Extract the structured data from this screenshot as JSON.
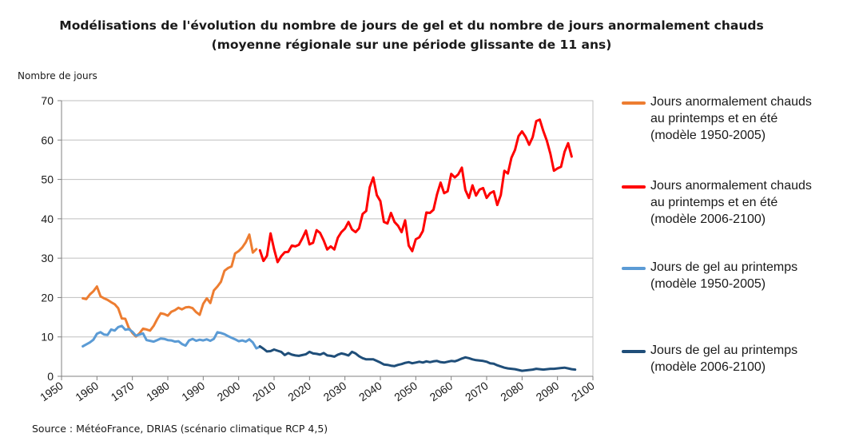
{
  "title_line1": "Modélisations de l'évolution du nombre de jours de gel et du nombre de jours anormalement chauds",
  "title_line2": "(moyenne régionale sur une période glissante de 11 ans)",
  "ylabel": "Nombre de jours",
  "source": "Source : MétéoFrance, DRIAS (scénario climatique RCP 4,5)",
  "chart_data": {
    "type": "line",
    "title": "Modélisations de l'évolution du nombre de jours de gel et du nombre de jours anormalement chauds (moyenne régionale sur une période glissante de 11 ans)",
    "xlabel": "",
    "ylabel": "Nombre de jours",
    "xlim": [
      1950,
      2100
    ],
    "ylim": [
      0,
      70
    ],
    "xticks": [
      1950,
      1960,
      1970,
      1980,
      1990,
      2000,
      2010,
      2020,
      2030,
      2040,
      2050,
      2060,
      2070,
      2080,
      2090,
      2100
    ],
    "yticks": [
      0,
      10,
      20,
      30,
      40,
      50,
      60,
      70
    ],
    "grid": "horizontal",
    "legend": "right",
    "series": [
      {
        "name": "Jours anormalement chauds au printemps et en été (modèle 1950-2005)",
        "color": "#ED7D31",
        "width": 3,
        "points": [
          [
            1956,
            19.8
          ],
          [
            1957,
            19.6
          ],
          [
            1958,
            20.8
          ],
          [
            1959,
            21.6
          ],
          [
            1960,
            22.8
          ],
          [
            1961,
            20.3
          ],
          [
            1962,
            19.8
          ],
          [
            1963,
            19.4
          ],
          [
            1964,
            18.8
          ],
          [
            1965,
            18.3
          ],
          [
            1966,
            17.3
          ],
          [
            1967,
            14.7
          ],
          [
            1968,
            14.6
          ],
          [
            1969,
            12.3
          ],
          [
            1970,
            11.0
          ],
          [
            1971,
            10.1
          ],
          [
            1972,
            10.9
          ],
          [
            1973,
            12.1
          ],
          [
            1974,
            11.9
          ],
          [
            1975,
            11.6
          ],
          [
            1976,
            12.8
          ],
          [
            1977,
            14.5
          ],
          [
            1978,
            16.0
          ],
          [
            1979,
            15.8
          ],
          [
            1980,
            15.4
          ],
          [
            1981,
            16.4
          ],
          [
            1982,
            16.8
          ],
          [
            1983,
            17.4
          ],
          [
            1984,
            17.0
          ],
          [
            1985,
            17.5
          ],
          [
            1986,
            17.6
          ],
          [
            1987,
            17.3
          ],
          [
            1988,
            16.3
          ],
          [
            1989,
            15.6
          ],
          [
            1990,
            18.4
          ],
          [
            1991,
            19.8
          ],
          [
            1992,
            18.6
          ],
          [
            1993,
            21.8
          ],
          [
            1994,
            22.8
          ],
          [
            1995,
            24.0
          ],
          [
            1996,
            26.8
          ],
          [
            1997,
            27.5
          ],
          [
            1998,
            27.9
          ],
          [
            1999,
            31.2
          ],
          [
            2000,
            31.8
          ],
          [
            2001,
            32.7
          ],
          [
            2002,
            34.0
          ],
          [
            2003,
            36.0
          ],
          [
            2004,
            31.4
          ],
          [
            2005,
            32.3
          ]
        ]
      },
      {
        "name": "Jours anormalement chauds au printemps et en été (modèle 2006-2100)",
        "color": "#FF0000",
        "width": 3,
        "points": [
          [
            2006,
            32.0
          ],
          [
            2007,
            29.3
          ],
          [
            2008,
            30.6
          ],
          [
            2009,
            36.3
          ],
          [
            2010,
            32.3
          ],
          [
            2011,
            29.0
          ],
          [
            2012,
            30.5
          ],
          [
            2013,
            31.5
          ],
          [
            2014,
            31.6
          ],
          [
            2015,
            33.2
          ],
          [
            2016,
            33.0
          ],
          [
            2017,
            33.4
          ],
          [
            2018,
            35.1
          ],
          [
            2019,
            37.0
          ],
          [
            2020,
            33.5
          ],
          [
            2021,
            33.9
          ],
          [
            2022,
            37.1
          ],
          [
            2023,
            36.4
          ],
          [
            2024,
            34.5
          ],
          [
            2025,
            32.2
          ],
          [
            2026,
            33.0
          ],
          [
            2027,
            32.2
          ],
          [
            2028,
            35.2
          ],
          [
            2029,
            36.6
          ],
          [
            2030,
            37.5
          ],
          [
            2031,
            39.2
          ],
          [
            2032,
            37.3
          ],
          [
            2033,
            36.6
          ],
          [
            2034,
            37.6
          ],
          [
            2035,
            41.2
          ],
          [
            2036,
            42.0
          ],
          [
            2037,
            48.0
          ],
          [
            2038,
            50.5
          ],
          [
            2039,
            46.0
          ],
          [
            2040,
            44.5
          ],
          [
            2041,
            39.2
          ],
          [
            2042,
            38.8
          ],
          [
            2043,
            41.5
          ],
          [
            2044,
            39.2
          ],
          [
            2045,
            38.2
          ],
          [
            2046,
            36.6
          ],
          [
            2047,
            39.6
          ],
          [
            2048,
            33.2
          ],
          [
            2049,
            31.8
          ],
          [
            2050,
            34.8
          ],
          [
            2051,
            35.3
          ],
          [
            2052,
            36.9
          ],
          [
            2053,
            41.6
          ],
          [
            2054,
            41.5
          ],
          [
            2055,
            42.3
          ],
          [
            2056,
            46.2
          ],
          [
            2057,
            49.2
          ],
          [
            2058,
            46.5
          ],
          [
            2059,
            47.0
          ],
          [
            2060,
            51.4
          ],
          [
            2061,
            50.5
          ],
          [
            2062,
            51.3
          ],
          [
            2063,
            53.0
          ],
          [
            2064,
            47.3
          ],
          [
            2065,
            45.3
          ],
          [
            2066,
            48.5
          ],
          [
            2067,
            45.9
          ],
          [
            2068,
            47.4
          ],
          [
            2069,
            47.8
          ],
          [
            2070,
            45.3
          ],
          [
            2071,
            46.5
          ],
          [
            2072,
            47.0
          ],
          [
            2073,
            43.5
          ],
          [
            2074,
            46.0
          ],
          [
            2075,
            52.2
          ],
          [
            2076,
            51.5
          ],
          [
            2077,
            55.5
          ],
          [
            2078,
            57.5
          ],
          [
            2079,
            61.0
          ],
          [
            2080,
            62.2
          ],
          [
            2081,
            60.8
          ],
          [
            2082,
            58.8
          ],
          [
            2083,
            60.7
          ],
          [
            2084,
            64.8
          ],
          [
            2085,
            65.2
          ],
          [
            2086,
            62.3
          ],
          [
            2087,
            59.8
          ],
          [
            2088,
            56.5
          ],
          [
            2089,
            52.2
          ],
          [
            2090,
            52.8
          ],
          [
            2091,
            53.2
          ],
          [
            2092,
            57.0
          ],
          [
            2093,
            59.2
          ],
          [
            2094,
            55.8
          ]
        ]
      },
      {
        "name": "Jours de gel au printemps (modèle 1950-2005)",
        "color": "#5B9BD5",
        "width": 3,
        "points": [
          [
            1956,
            7.6
          ],
          [
            1957,
            8.1
          ],
          [
            1958,
            8.6
          ],
          [
            1959,
            9.3
          ],
          [
            1960,
            10.8
          ],
          [
            1961,
            11.2
          ],
          [
            1962,
            10.6
          ],
          [
            1963,
            10.5
          ],
          [
            1964,
            11.9
          ],
          [
            1965,
            11.6
          ],
          [
            1966,
            12.5
          ],
          [
            1967,
            12.8
          ],
          [
            1968,
            11.8
          ],
          [
            1969,
            12.0
          ],
          [
            1970,
            11.3
          ],
          [
            1971,
            10.3
          ],
          [
            1972,
            10.6
          ],
          [
            1973,
            10.9
          ],
          [
            1974,
            9.2
          ],
          [
            1975,
            9.0
          ],
          [
            1976,
            8.8
          ],
          [
            1977,
            9.2
          ],
          [
            1978,
            9.6
          ],
          [
            1979,
            9.5
          ],
          [
            1980,
            9.2
          ],
          [
            1981,
            9.1
          ],
          [
            1982,
            8.8
          ],
          [
            1983,
            8.9
          ],
          [
            1984,
            8.2
          ],
          [
            1985,
            7.8
          ],
          [
            1986,
            9.1
          ],
          [
            1987,
            9.5
          ],
          [
            1988,
            9.0
          ],
          [
            1989,
            9.3
          ],
          [
            1990,
            9.1
          ],
          [
            1991,
            9.4
          ],
          [
            1992,
            9.0
          ],
          [
            1993,
            9.5
          ],
          [
            1994,
            11.2
          ],
          [
            1995,
            11.0
          ],
          [
            1996,
            10.7
          ],
          [
            1997,
            10.2
          ],
          [
            1998,
            9.8
          ],
          [
            1999,
            9.4
          ],
          [
            2000,
            8.9
          ],
          [
            2001,
            9.1
          ],
          [
            2002,
            8.8
          ],
          [
            2003,
            9.4
          ],
          [
            2004,
            8.6
          ],
          [
            2005,
            7.1
          ],
          [
            2006,
            7.5
          ]
        ]
      },
      {
        "name": "Jours de gel au printemps (modèle 2006-2100)",
        "color": "#1F4E79",
        "width": 3,
        "points": [
          [
            2006,
            7.6
          ],
          [
            2007,
            7.0
          ],
          [
            2008,
            6.3
          ],
          [
            2009,
            6.4
          ],
          [
            2010,
            6.8
          ],
          [
            2011,
            6.5
          ],
          [
            2012,
            6.2
          ],
          [
            2013,
            5.4
          ],
          [
            2014,
            5.9
          ],
          [
            2015,
            5.5
          ],
          [
            2016,
            5.3
          ],
          [
            2017,
            5.2
          ],
          [
            2018,
            5.4
          ],
          [
            2019,
            5.6
          ],
          [
            2020,
            6.2
          ],
          [
            2021,
            5.8
          ],
          [
            2022,
            5.7
          ],
          [
            2023,
            5.5
          ],
          [
            2024,
            5.9
          ],
          [
            2025,
            5.3
          ],
          [
            2026,
            5.2
          ],
          [
            2027,
            5.0
          ],
          [
            2028,
            5.5
          ],
          [
            2029,
            5.8
          ],
          [
            2030,
            5.6
          ],
          [
            2031,
            5.3
          ],
          [
            2032,
            6.2
          ],
          [
            2033,
            5.8
          ],
          [
            2034,
            5.1
          ],
          [
            2035,
            4.6
          ],
          [
            2036,
            4.3
          ],
          [
            2037,
            4.3
          ],
          [
            2038,
            4.3
          ],
          [
            2039,
            3.9
          ],
          [
            2040,
            3.5
          ],
          [
            2041,
            3.0
          ],
          [
            2042,
            2.9
          ],
          [
            2043,
            2.7
          ],
          [
            2044,
            2.6
          ],
          [
            2045,
            2.9
          ],
          [
            2046,
            3.1
          ],
          [
            2047,
            3.4
          ],
          [
            2048,
            3.6
          ],
          [
            2049,
            3.3
          ],
          [
            2050,
            3.5
          ],
          [
            2051,
            3.7
          ],
          [
            2052,
            3.5
          ],
          [
            2053,
            3.8
          ],
          [
            2054,
            3.6
          ],
          [
            2055,
            3.8
          ],
          [
            2056,
            3.9
          ],
          [
            2057,
            3.6
          ],
          [
            2058,
            3.5
          ],
          [
            2059,
            3.7
          ],
          [
            2060,
            3.9
          ],
          [
            2061,
            3.8
          ],
          [
            2062,
            4.1
          ],
          [
            2063,
            4.5
          ],
          [
            2064,
            4.8
          ],
          [
            2065,
            4.6
          ],
          [
            2066,
            4.3
          ],
          [
            2067,
            4.1
          ],
          [
            2068,
            4.0
          ],
          [
            2069,
            3.9
          ],
          [
            2070,
            3.7
          ],
          [
            2071,
            3.3
          ],
          [
            2072,
            3.2
          ],
          [
            2073,
            2.8
          ],
          [
            2074,
            2.5
          ],
          [
            2075,
            2.2
          ],
          [
            2076,
            2.0
          ],
          [
            2077,
            1.9
          ],
          [
            2078,
            1.8
          ],
          [
            2079,
            1.6
          ],
          [
            2080,
            1.4
          ],
          [
            2081,
            1.5
          ],
          [
            2082,
            1.6
          ],
          [
            2083,
            1.7
          ],
          [
            2084,
            1.9
          ],
          [
            2085,
            1.8
          ],
          [
            2086,
            1.7
          ],
          [
            2087,
            1.8
          ],
          [
            2088,
            1.9
          ],
          [
            2089,
            1.9
          ],
          [
            2090,
            2.0
          ],
          [
            2091,
            2.1
          ],
          [
            2092,
            2.2
          ],
          [
            2093,
            2.0
          ],
          [
            2094,
            1.8
          ],
          [
            2095,
            1.7
          ]
        ]
      }
    ]
  },
  "legend": [
    {
      "lines": [
        "Jours anormalement chauds",
        "au printemps et en été",
        "(modèle 1950-2005)"
      ],
      "color": "#ED7D31"
    },
    {
      "lines": [
        "Jours anormalement chauds",
        "au printemps et en été",
        "(modèle 2006-2100)"
      ],
      "color": "#FF0000"
    },
    {
      "lines": [
        "Jours de gel au printemps",
        "(modèle 1950-2005)"
      ],
      "color": "#5B9BD5"
    },
    {
      "lines": [
        "Jours de gel au printemps",
        "(modèle 2006-2100)"
      ],
      "color": "#1F4E79"
    }
  ]
}
